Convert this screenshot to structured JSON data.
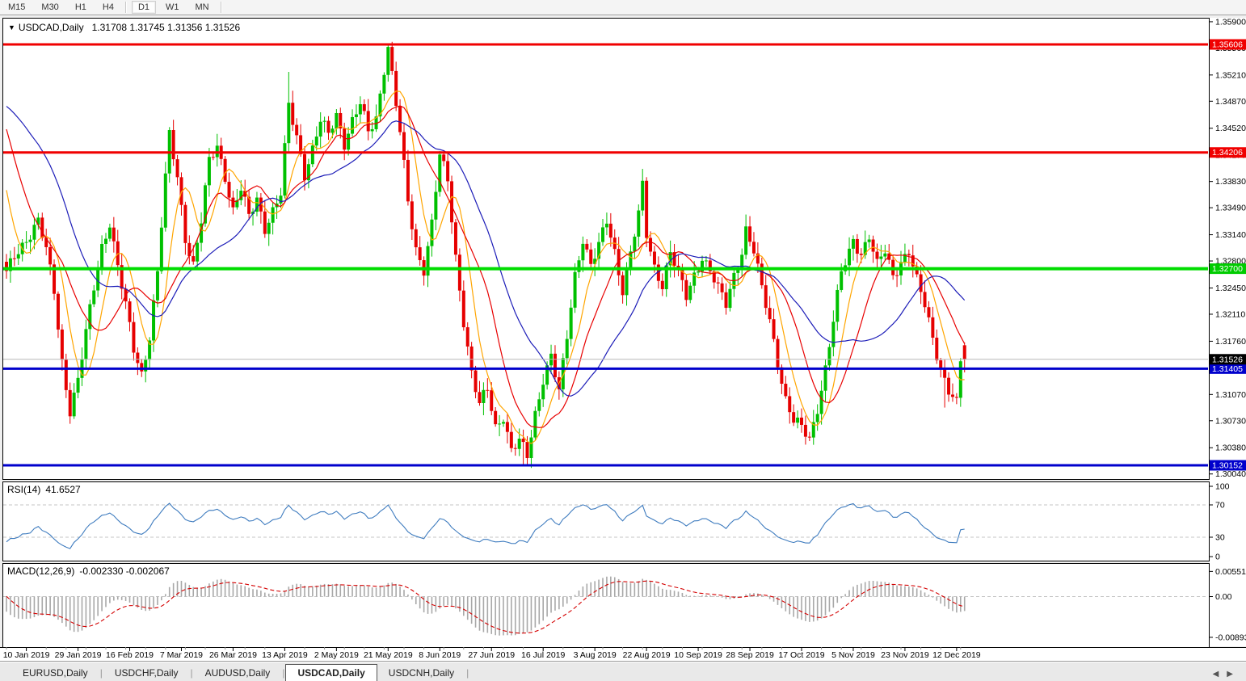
{
  "toolbar": {
    "items": [
      {
        "label": "M15",
        "active": false
      },
      {
        "label": "M30",
        "active": false
      },
      {
        "label": "H1",
        "active": false
      },
      {
        "label": "H4",
        "active": false
      },
      {
        "label": "D1",
        "active": true
      },
      {
        "label": "W1",
        "active": false
      },
      {
        "label": "MN",
        "active": false
      }
    ]
  },
  "title": {
    "symbol": "USDCAD,Daily",
    "ohlc_text": "1.31708 1.31745 1.31356 1.31526"
  },
  "indicators": {
    "rsi_label": "RSI(14)",
    "rsi_value": "41.6527",
    "macd_label": "MACD(12,26,9)",
    "macd_values": "-0.002330 -0.002067"
  },
  "tabs": [
    {
      "label": "EURUSD,Daily",
      "active": false
    },
    {
      "label": "USDCHF,Daily",
      "active": false
    },
    {
      "label": "AUDUSD,Daily",
      "active": false
    },
    {
      "label": "USDCAD,Daily",
      "active": true
    },
    {
      "label": "USDCNH,Daily",
      "active": false
    }
  ],
  "tab_scroll": {
    "left": "◀",
    "right": "▶"
  },
  "chart_data": {
    "type": "candlestick",
    "symbol": "USDCAD",
    "timeframe": "Daily",
    "current_bar": {
      "open": 1.31708,
      "high": 1.31745,
      "low": 1.31356,
      "close": 1.31526
    },
    "colors": {
      "up": "#00c000",
      "down": "#e60000",
      "ma_fast": "#ffa500",
      "ma_mid": "#e80000",
      "ma_slow": "#1d1db8",
      "rsi_line": "#3f7cbf",
      "macd_hist": "#a8a8a8",
      "macd_signal": "#d40000",
      "level_red": "#f00000",
      "level_green": "#00dd00",
      "level_blue": "#0000cc",
      "current_price_line": "#b8b8b8",
      "badge_black": "#000000"
    },
    "y_axis": {
      "tick_labels": [
        "1.35900",
        "1.35560",
        "1.35210",
        "1.34870",
        "1.34520",
        "1.34170",
        "1.33830",
        "1.33490",
        "1.33140",
        "1.32800",
        "1.32450",
        "1.32110",
        "1.31760",
        "1.31410",
        "1.31070",
        "1.30730",
        "1.30380",
        "1.30040"
      ]
    },
    "x_axis": {
      "tick_labels": [
        "10 Jan 2019",
        "29 Jan 2019",
        "16 Feb 2019",
        "7 Mar 2019",
        "26 Mar 2019",
        "13 Apr 2019",
        "2 May 2019",
        "21 May 2019",
        "8 Jun 2019",
        "27 Jun 2019",
        "16 Jul 2019",
        "3 Aug 2019",
        "22 Aug 2019",
        "10 Sep 2019",
        "28 Sep 2019",
        "17 Oct 2019",
        "5 Nov 2019",
        "23 Nov 2019",
        "12 Dec 2019"
      ],
      "tick_indices": [
        5,
        18,
        31,
        44,
        57,
        70,
        83,
        96,
        109,
        122,
        135,
        148,
        161,
        174,
        187,
        200,
        213,
        226,
        239
      ]
    },
    "horizontal_levels": [
      {
        "price": 1.35606,
        "label": "1.35606",
        "color": "#f00000",
        "width": 3
      },
      {
        "price": 1.34206,
        "label": "1.34206",
        "color": "#f00000",
        "width": 3
      },
      {
        "price": 1.327,
        "label": "1.32700",
        "color": "#00dd00",
        "width": 4
      },
      {
        "price": 1.31405,
        "label": "1.31405",
        "color": "#0000cc",
        "width": 3
      },
      {
        "price": 1.30152,
        "label": "1.30152",
        "color": "#0000cc",
        "width": 3
      }
    ],
    "current_price": {
      "price": 1.31526,
      "label": "1.31526"
    },
    "candles": {
      "count": 242,
      "close_keypoints": [
        [
          0,
          1.3262
        ],
        [
          2,
          1.3285
        ],
        [
          5,
          1.331
        ],
        [
          8,
          1.3332
        ],
        [
          10,
          1.3292
        ],
        [
          12,
          1.324
        ],
        [
          14,
          1.315
        ],
        [
          16,
          1.3088
        ],
        [
          18,
          1.3125
        ],
        [
          20,
          1.3185
        ],
        [
          22,
          1.3245
        ],
        [
          24,
          1.33
        ],
        [
          26,
          1.3332
        ],
        [
          28,
          1.3272
        ],
        [
          30,
          1.322
        ],
        [
          32,
          1.3165
        ],
        [
          34,
          1.3135
        ],
        [
          36,
          1.3185
        ],
        [
          38,
          1.3265
        ],
        [
          40,
          1.3385
        ],
        [
          41,
          1.3442
        ],
        [
          43,
          1.339
        ],
        [
          45,
          1.3312
        ],
        [
          47,
          1.3275
        ],
        [
          49,
          1.333
        ],
        [
          51,
          1.3408
        ],
        [
          53,
          1.343
        ],
        [
          55,
          1.3392
        ],
        [
          57,
          1.3345
        ],
        [
          59,
          1.3372
        ],
        [
          61,
          1.3335
        ],
        [
          63,
          1.3362
        ],
        [
          65,
          1.3325
        ],
        [
          67,
          1.3345
        ],
        [
          69,
          1.3365
        ],
        [
          71,
          1.348
        ],
        [
          73,
          1.3442
        ],
        [
          75,
          1.3395
        ],
        [
          77,
          1.3425
        ],
        [
          79,
          1.346
        ],
        [
          81,
          1.3442
        ],
        [
          83,
          1.347
        ],
        [
          85,
          1.3435
        ],
        [
          87,
          1.3462
        ],
        [
          89,
          1.3482
        ],
        [
          91,
          1.3445
        ],
        [
          93,
          1.3465
        ],
        [
          95,
          1.3532
        ],
        [
          96,
          1.356
        ],
        [
          97,
          1.3522
        ],
        [
          99,
          1.3445
        ],
        [
          101,
          1.3355
        ],
        [
          103,
          1.3295
        ],
        [
          105,
          1.3272
        ],
        [
          107,
          1.333
        ],
        [
          109,
          1.3415
        ],
        [
          111,
          1.3382
        ],
        [
          113,
          1.3285
        ],
        [
          115,
          1.3205
        ],
        [
          117,
          1.3135
        ],
        [
          119,
          1.3092
        ],
        [
          121,
          1.3112
        ],
        [
          123,
          1.3065
        ],
        [
          125,
          1.3082
        ],
        [
          127,
          1.3035
        ],
        [
          129,
          1.3045
        ],
        [
          131,
          1.3025
        ],
        [
          133,
          1.3082
        ],
        [
          135,
          1.313
        ],
        [
          137,
          1.3158
        ],
        [
          139,
          1.3108
        ],
        [
          141,
          1.318
        ],
        [
          143,
          1.3262
        ],
        [
          145,
          1.3312
        ],
        [
          147,
          1.3275
        ],
        [
          149,
          1.3298
        ],
        [
          151,
          1.333
        ],
        [
          153,
          1.3292
        ],
        [
          155,
          1.3245
        ],
        [
          157,
          1.3292
        ],
        [
          159,
          1.3338
        ],
        [
          160,
          1.3375
        ],
        [
          161,
          1.3312
        ],
        [
          163,
          1.3272
        ],
        [
          165,
          1.3252
        ],
        [
          167,
          1.3292
        ],
        [
          169,
          1.3262
        ],
        [
          171,
          1.3232
        ],
        [
          173,
          1.3262
        ],
        [
          175,
          1.3288
        ],
        [
          177,
          1.3268
        ],
        [
          179,
          1.3242
        ],
        [
          181,
          1.3222
        ],
        [
          183,
          1.3262
        ],
        [
          185,
          1.3295
        ],
        [
          186,
          1.3322
        ],
        [
          188,
          1.3292
        ],
        [
          190,
          1.3242
        ],
        [
          192,
          1.3202
        ],
        [
          194,
          1.3152
        ],
        [
          196,
          1.3102
        ],
        [
          198,
          1.3072
        ],
        [
          200,
          1.3062
        ],
        [
          202,
          1.3048
        ],
        [
          204,
          1.3092
        ],
        [
          206,
          1.3142
        ],
        [
          208,
          1.3202
        ],
        [
          210,
          1.3262
        ],
        [
          212,
          1.3292
        ],
        [
          213,
          1.3308
        ],
        [
          215,
          1.3292
        ],
        [
          217,
          1.3312
        ],
        [
          219,
          1.3272
        ],
        [
          221,
          1.3292
        ],
        [
          223,
          1.3262
        ],
        [
          225,
          1.3282
        ],
        [
          227,
          1.3292
        ],
        [
          229,
          1.3252
        ],
        [
          231,
          1.3222
        ],
        [
          233,
          1.3182
        ],
        [
          235,
          1.3142
        ],
        [
          237,
          1.3112
        ],
        [
          239,
          1.3092
        ],
        [
          240,
          1.3148
        ],
        [
          241,
          1.31526
        ]
      ],
      "wick_overrides": {
        "16": {
          "l": 1.3069
        },
        "71": {
          "h": 1.3525
        },
        "96": {
          "h": 1.35606
        },
        "130": {
          "l": 1.3016
        },
        "131": {
          "l": 1.30152
        },
        "201": {
          "l": 1.3042
        },
        "236": {
          "l": 1.309
        }
      },
      "warmup_closes_for_ma": [
        1.334,
        1.336,
        1.3385,
        1.3405,
        1.343,
        1.3455,
        1.3475,
        1.3495,
        1.351,
        1.352,
        1.353,
        1.354,
        1.355,
        1.3558,
        1.3565,
        1.356,
        1.355,
        1.3545,
        1.3552,
        1.3548,
        1.3538,
        1.3525,
        1.351,
        1.349,
        1.3465,
        1.344,
        1.341,
        1.338,
        1.334,
        1.33
      ]
    },
    "moving_averages": [
      {
        "name": "fast",
        "period": 7,
        "color_key": "ma_fast"
      },
      {
        "name": "medium",
        "period": 14,
        "color_key": "ma_mid"
      },
      {
        "name": "slow",
        "period": 28,
        "color_key": "ma_slow"
      }
    ],
    "rsi": {
      "period": 14,
      "levels": [
        "100",
        "70",
        "30",
        "0"
      ],
      "level_values": [
        100,
        70,
        30,
        0
      ],
      "dashed_levels": [
        70,
        30
      ]
    },
    "macd": {
      "fast": 12,
      "slow": 26,
      "signal": 9,
      "axis_labels": [
        "0.005512",
        "0.00",
        "-0.00893"
      ],
      "axis_values": [
        0.005512,
        0,
        -0.00893
      ]
    }
  }
}
